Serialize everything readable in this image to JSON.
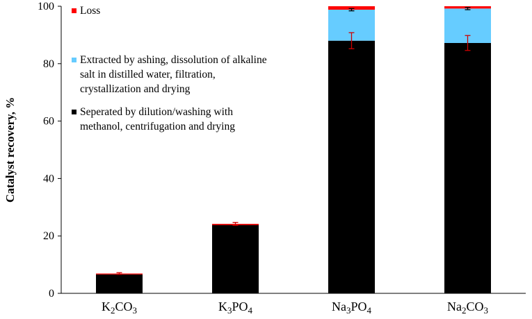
{
  "chart_data": {
    "type": "bar",
    "stacked": true,
    "ylabel": "Catalyst recovery, %",
    "xlabel": "",
    "ylim": [
      0,
      100
    ],
    "yticks": [
      0,
      20,
      40,
      60,
      80,
      100
    ],
    "grid": false,
    "legend_position": "top-left",
    "categories": [
      {
        "base": "K",
        "sub1": "2",
        "mid": "CO",
        "sub2": "3"
      },
      {
        "base": "K",
        "sub1": "3",
        "mid": "PO",
        "sub2": "4"
      },
      {
        "base": "Na",
        "sub1": "3",
        "mid": "PO",
        "sub2": "4"
      },
      {
        "base": "Na",
        "sub1": "2",
        "mid": "CO",
        "sub2": "3"
      }
    ],
    "series": [
      {
        "name": "Seperated by dilution/washing with methanol, centrifugation and drying",
        "legend_lines": [
          "Seperated by dilution/washing with",
          "methanol, centrifugation and drying"
        ],
        "color": "#000000",
        "values": [
          6.6,
          23.8,
          88.0,
          87.2
        ],
        "error": [
          null,
          null,
          2.8,
          2.6
        ],
        "error_color": "#cc0000"
      },
      {
        "name": "Extracted by ashing, dissolution of alkaline salt in distilled water, filtration, crystallization and drying",
        "legend_lines": [
          "Extracted by ashing, dissolution of alkaline",
          "salt in distilled water, filtration,",
          "crystallization and drying"
        ],
        "color": "#66ccff",
        "values": [
          0,
          0,
          10.8,
          12.0
        ],
        "error": [
          null,
          null,
          0.4,
          0.4
        ],
        "error_color": "#000000"
      },
      {
        "name": "Loss",
        "legend_lines": [
          "Loss"
        ],
        "color": "#ff0000",
        "values": [
          0.3,
          0.4,
          1.2,
          0.8
        ],
        "error": [
          0.3,
          0.5,
          null,
          null
        ],
        "error_color": "#cc0000"
      }
    ]
  }
}
